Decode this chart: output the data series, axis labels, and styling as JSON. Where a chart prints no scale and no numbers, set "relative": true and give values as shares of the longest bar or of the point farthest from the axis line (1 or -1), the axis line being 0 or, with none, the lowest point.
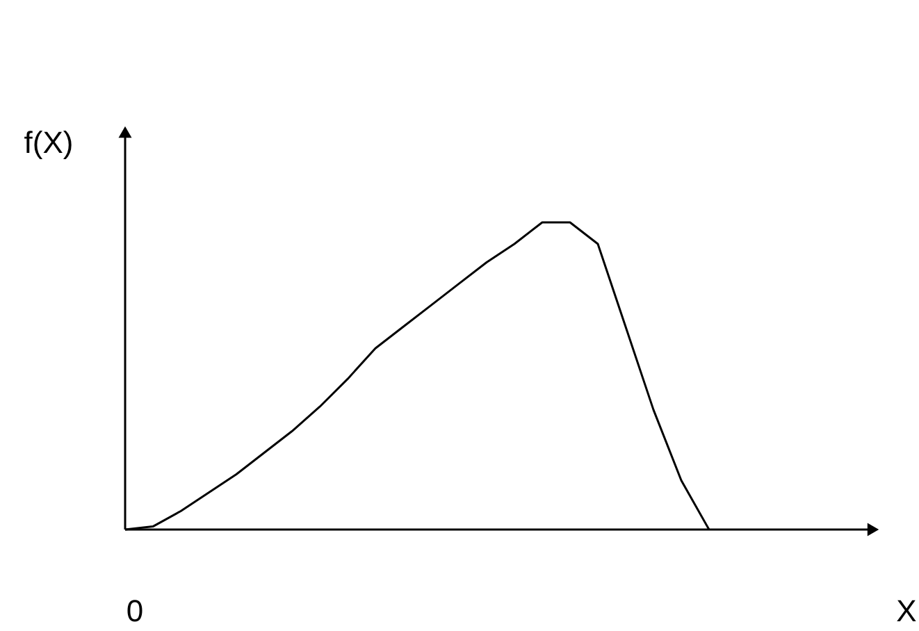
{
  "chart_data": {
    "type": "line",
    "relative": true,
    "ylabel": "f(X)",
    "annotations": [
      "0",
      "X"
    ],
    "color": "#000000",
    "categories": [
      null,
      null,
      null,
      null,
      null,
      null,
      null,
      null,
      null,
      null,
      null,
      null,
      null,
      null,
      null,
      null,
      null,
      null,
      null,
      null,
      null,
      null
    ],
    "values": [
      0,
      0.01,
      0.06,
      0.12,
      0.18,
      0.25,
      0.32,
      0.4,
      0.49,
      0.59,
      0.66,
      0.73,
      0.8,
      0.87,
      0.93,
      1.0,
      1.0,
      0.93,
      0.66,
      0.39,
      0.16,
      0
    ]
  }
}
